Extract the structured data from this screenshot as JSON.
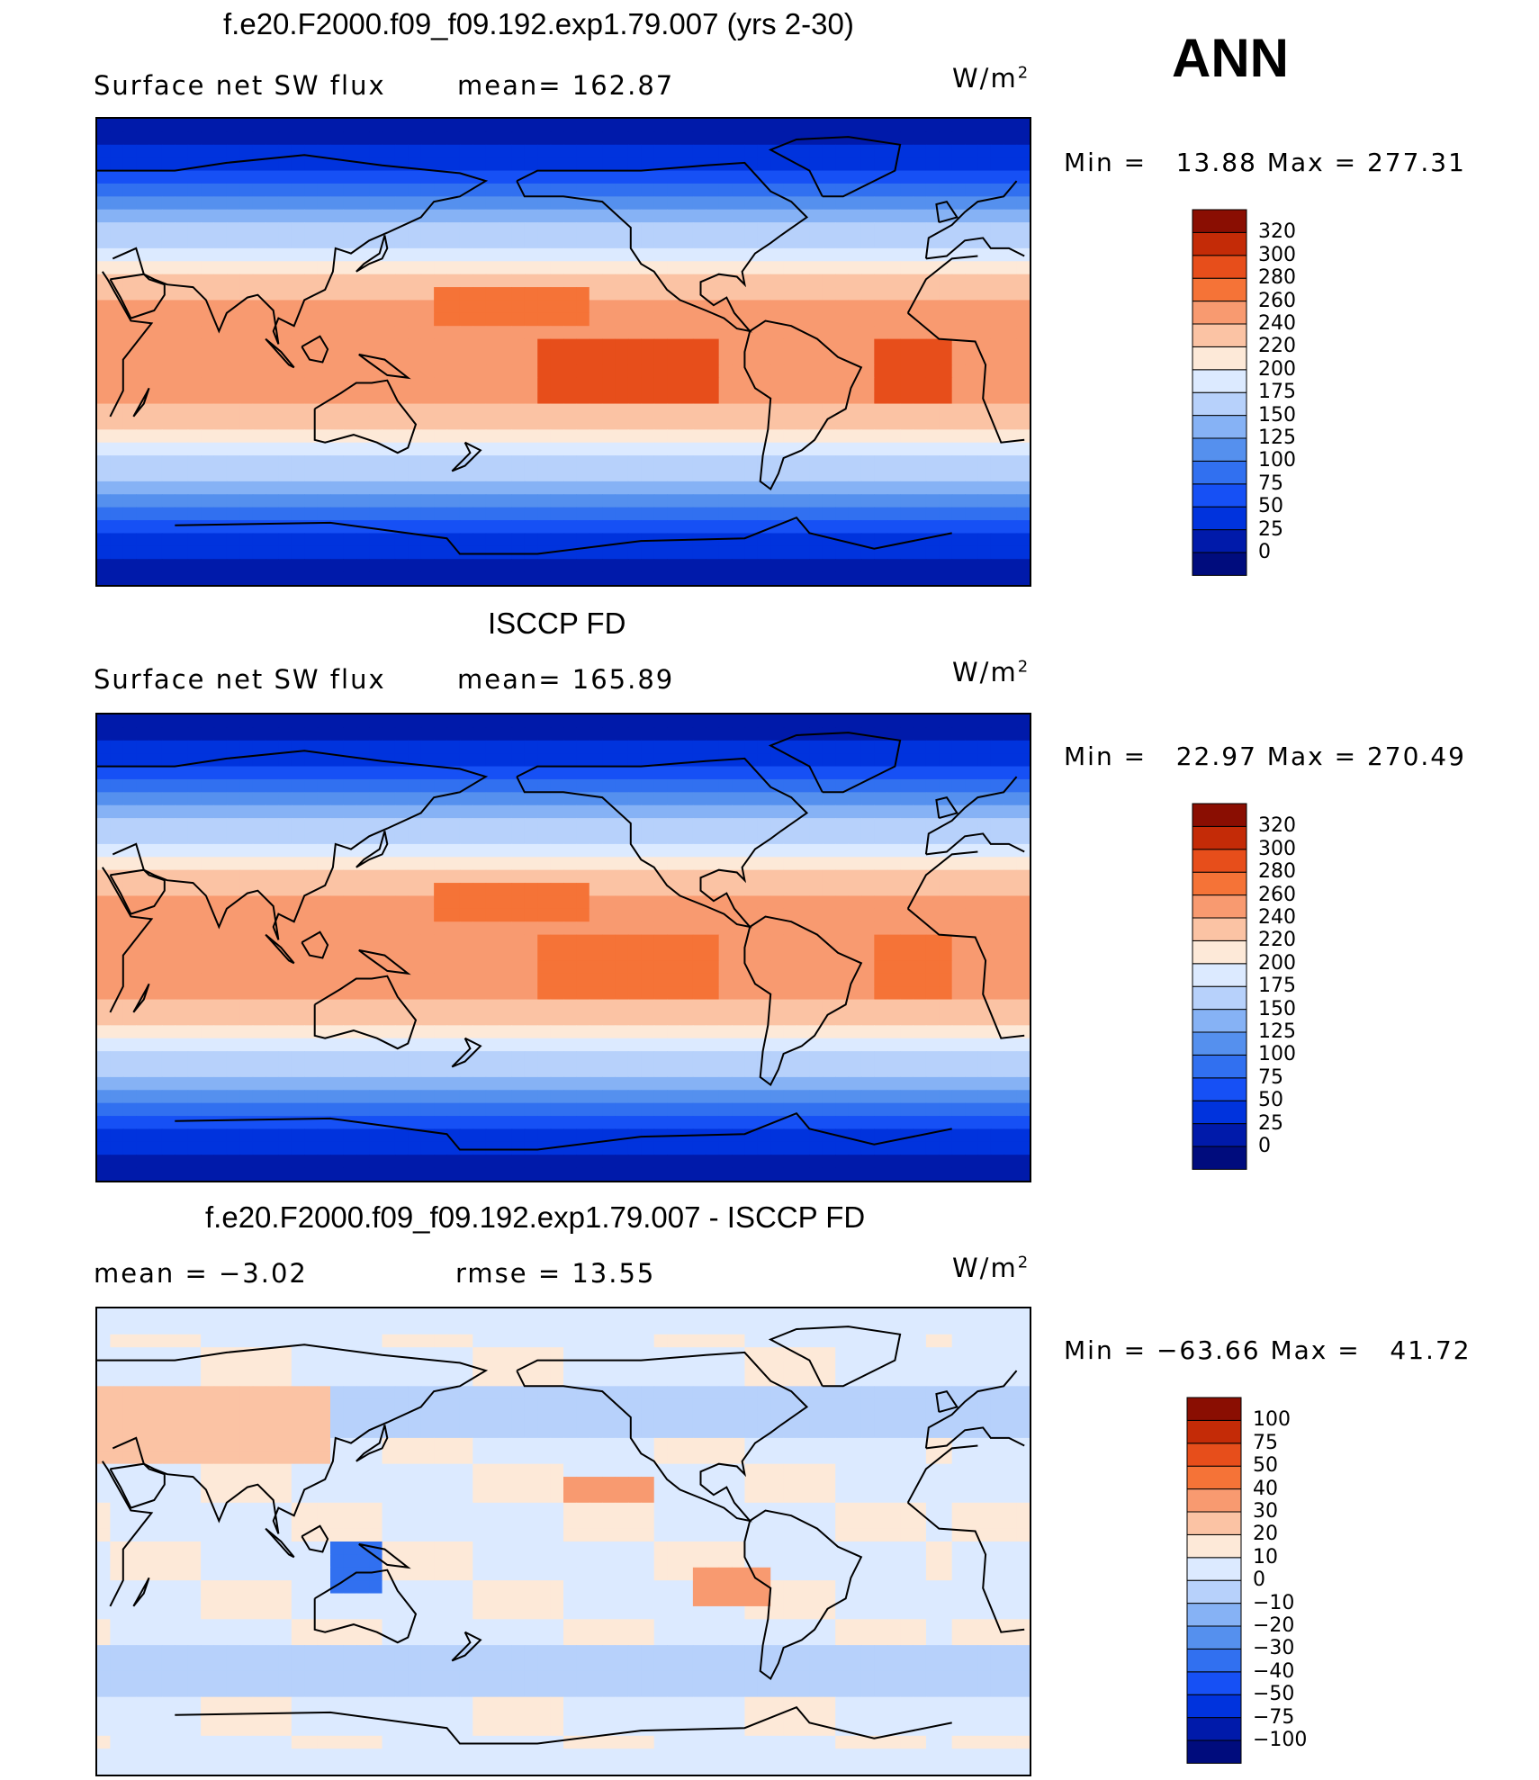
{
  "panels": [
    {
      "title": "f.e20.F2000.f09_f09.192.exp1.79.007 (yrs 2-30)",
      "subtitle_left": "Surface net SW flux",
      "subtitle_mid": "mean= 162.87",
      "units": "W/m",
      "units_exp": "2",
      "minmax": "Min =   13.88 Max = 277.31",
      "colorbar_labels": [
        "320",
        "300",
        "280",
        "260",
        "240",
        "220",
        "200",
        "175",
        "150",
        "125",
        "100",
        "75",
        "50",
        "25",
        "0"
      ]
    },
    {
      "title": "ISCCP FD",
      "subtitle_left": "Surface net SW flux",
      "subtitle_mid": "mean= 165.89",
      "units": "W/m",
      "units_exp": "2",
      "minmax": "Min =   22.97 Max = 270.49",
      "colorbar_labels": [
        "320",
        "300",
        "280",
        "260",
        "240",
        "220",
        "200",
        "175",
        "150",
        "125",
        "100",
        "75",
        "50",
        "25",
        "0"
      ]
    },
    {
      "title": "f.e20.F2000.f09_f09.192.exp1.79.007 - ISCCP FD",
      "subtitle_left": "mean =   −3.02",
      "subtitle_mid": "rmse =   13.55",
      "units": "W/m",
      "units_exp": "2",
      "minmax": "Min = −63.66 Max =   41.72",
      "colorbar_labels": [
        "100",
        "75",
        "50",
        "40",
        "30",
        "20",
        "10",
        "0",
        "−10",
        "−20",
        "−30",
        "−40",
        "−50",
        "−75",
        "−100"
      ]
    }
  ],
  "season_label": "ANN",
  "colors": {
    "abs_scale": [
      "#000c7d",
      "#001aaa",
      "#0033dd",
      "#1650f5",
      "#3170f0",
      "#5590ee",
      "#86b2f5",
      "#b7d1fb",
      "#dceaff",
      "#fde9d8",
      "#fbc3a4",
      "#f89a70",
      "#f57337",
      "#e74e1b",
      "#c42b07",
      "#8a0e02"
    ],
    "diff_scale": [
      "#000c7d",
      "#001aaa",
      "#0033dd",
      "#1650f5",
      "#3170f0",
      "#5590ee",
      "#86b2f5",
      "#b7d1fb",
      "#dceaff",
      "#fde9d8",
      "#fbc3a4",
      "#f89a70",
      "#f57337",
      "#e74e1b",
      "#c42b07",
      "#8a0e02"
    ]
  },
  "chart_data": [
    {
      "type": "heatmap",
      "title": "f.e20.F2000.f09_f09.192.exp1.79.007 (yrs 2-30)",
      "variable": "Surface net SW flux",
      "units": "W/m2",
      "mean": 162.87,
      "min": 13.88,
      "max": 277.31,
      "contour_levels": [
        0,
        25,
        50,
        75,
        100,
        125,
        150,
        175,
        200,
        220,
        240,
        260,
        280,
        300,
        320
      ]
    },
    {
      "type": "heatmap",
      "title": "ISCCP FD",
      "variable": "Surface net SW flux",
      "units": "W/m2",
      "mean": 165.89,
      "min": 22.97,
      "max": 270.49,
      "contour_levels": [
        0,
        25,
        50,
        75,
        100,
        125,
        150,
        175,
        200,
        220,
        240,
        260,
        280,
        300,
        320
      ]
    },
    {
      "type": "heatmap",
      "title": "f.e20.F2000.f09_f09.192.exp1.79.007 - ISCCP FD",
      "units": "W/m2",
      "mean": -3.02,
      "rmse": 13.55,
      "min": -63.66,
      "max": 41.72,
      "contour_levels": [
        -100,
        -75,
        -50,
        -40,
        -30,
        -20,
        -10,
        0,
        10,
        20,
        30,
        40,
        50,
        75,
        100
      ]
    }
  ]
}
